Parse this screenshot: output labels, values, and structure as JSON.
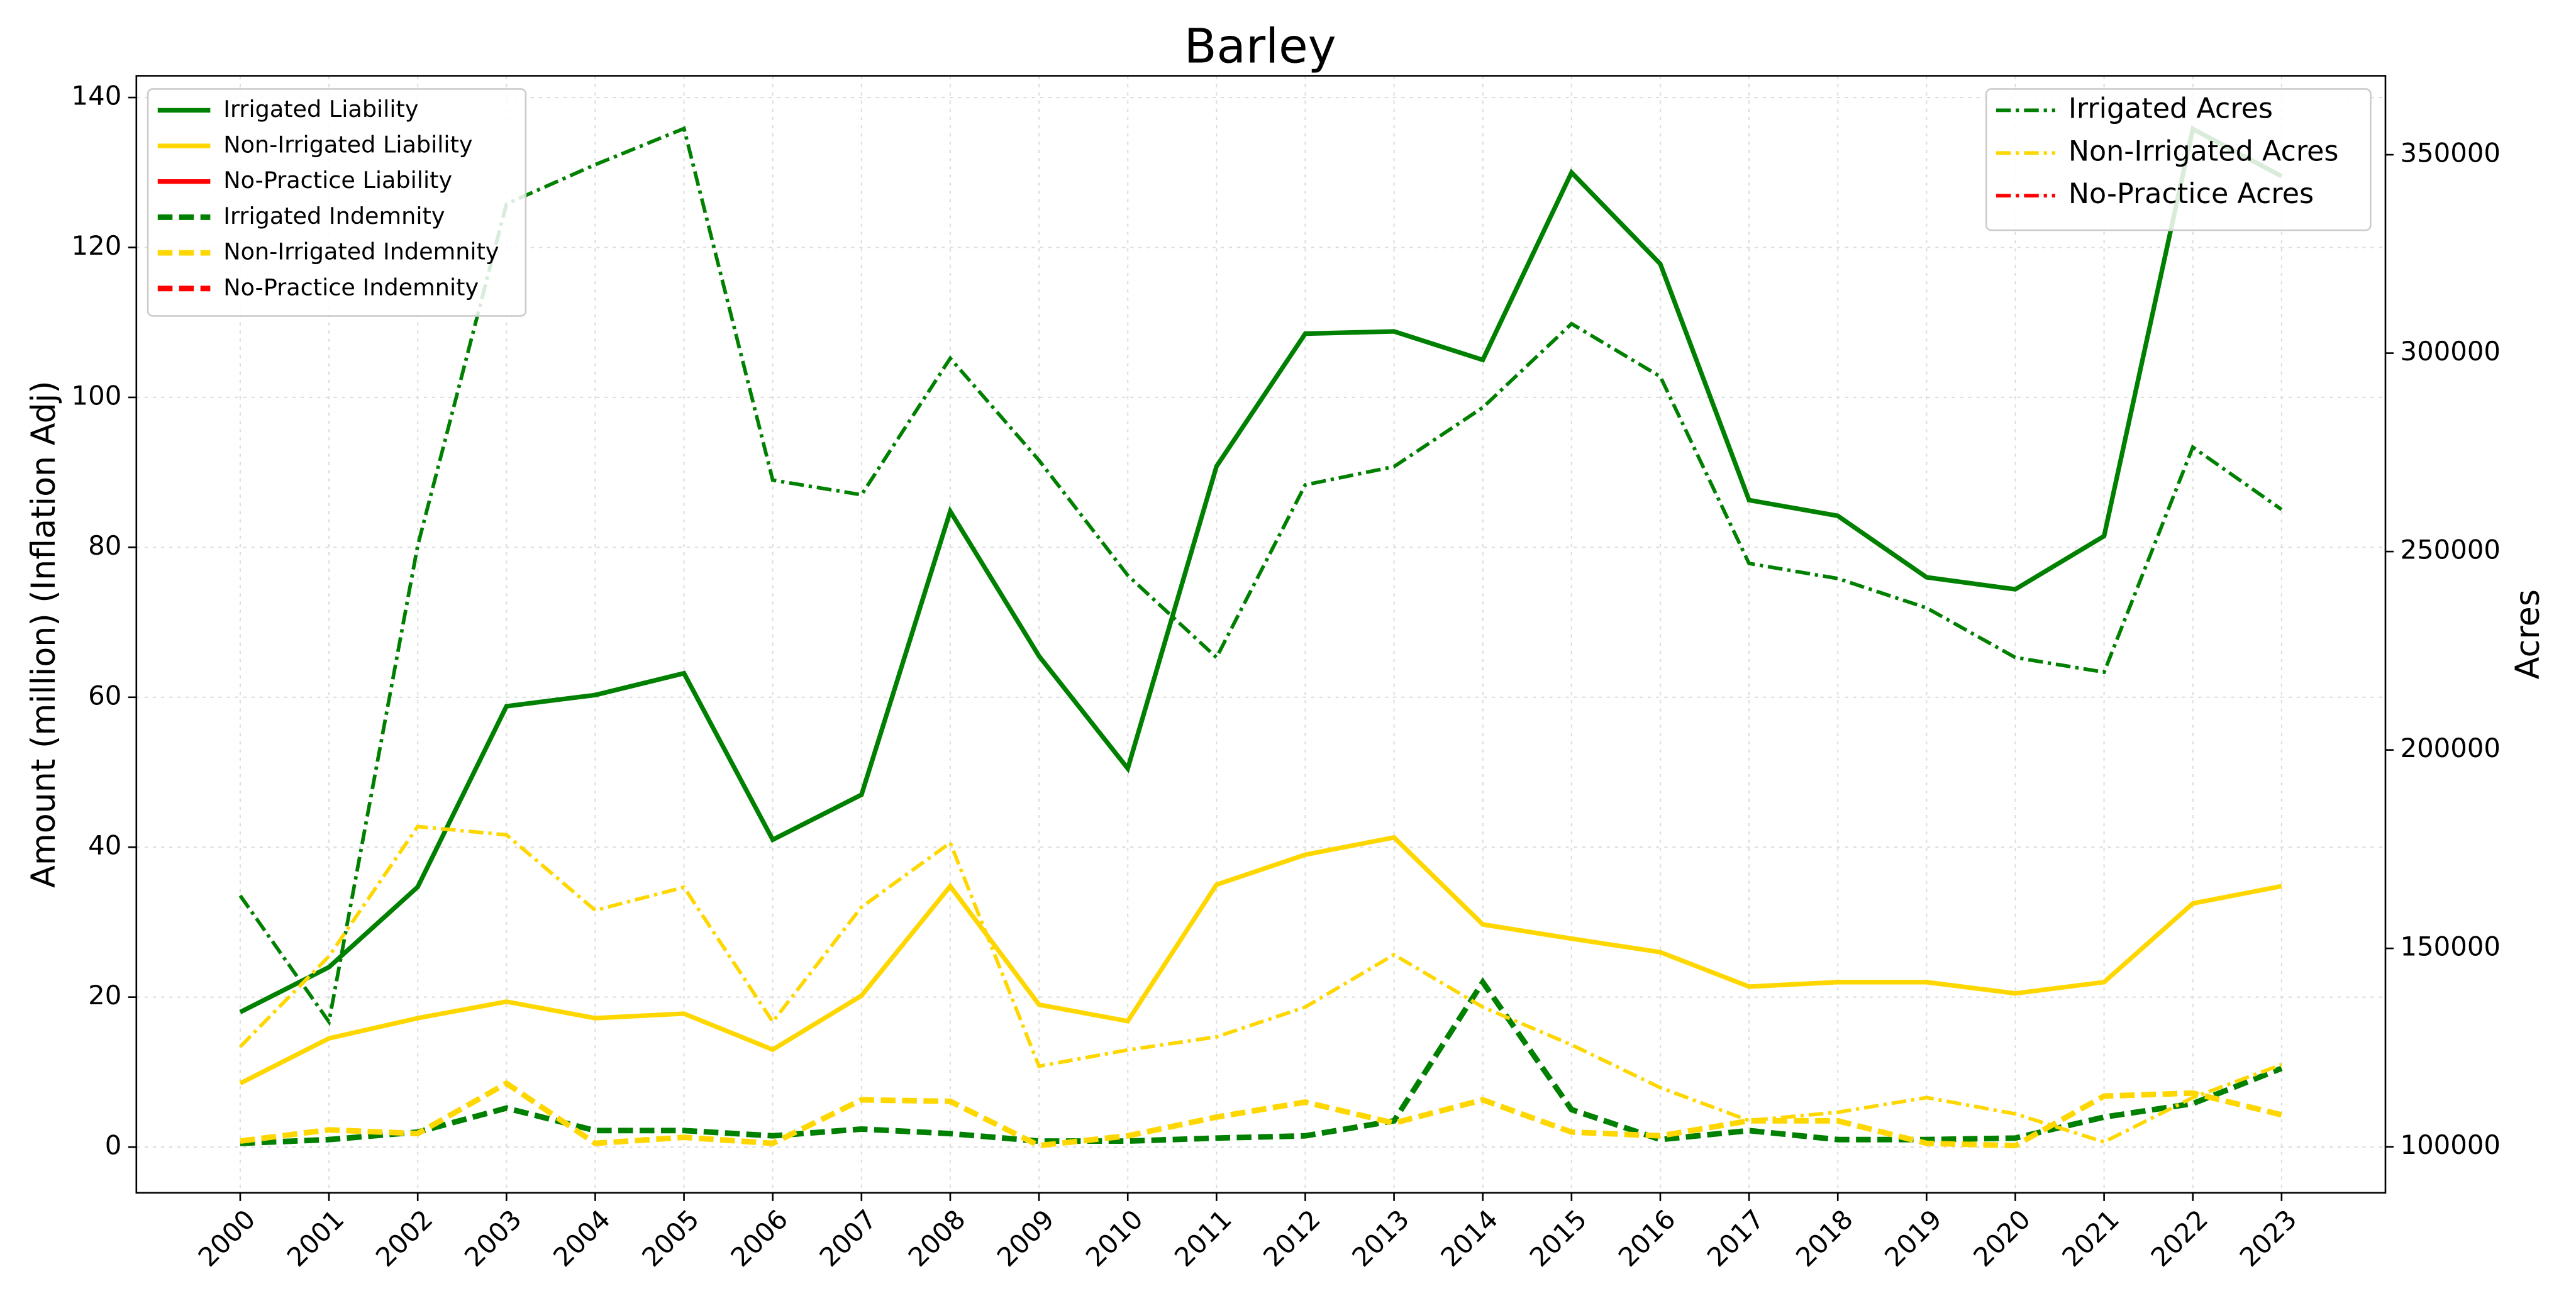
{
  "chart_data": {
    "type": "line",
    "title": "Barley",
    "ylabel": "Amount (million) (Inflation Adj)",
    "y2label": "Acres",
    "x": [
      2000,
      2001,
      2002,
      2003,
      2004,
      2005,
      2006,
      2007,
      2008,
      2009,
      2010,
      2011,
      2012,
      2013,
      2014,
      2015,
      2016,
      2017,
      2018,
      2019,
      2020,
      2021,
      2022,
      2023
    ],
    "xlim": [
      1998.83,
      2024.17
    ],
    "xticks": [
      2000,
      2001,
      2002,
      2003,
      2004,
      2005,
      2006,
      2007,
      2008,
      2009,
      2010,
      2011,
      2012,
      2013,
      2014,
      2015,
      2016,
      2017,
      2018,
      2019,
      2020,
      2021,
      2022,
      2023
    ],
    "ylim": [
      -6.1,
      142.9
    ],
    "yticks": [
      0,
      20,
      40,
      60,
      80,
      100,
      120,
      140
    ],
    "y2lim": [
      88400,
      369900
    ],
    "y2ticks": [
      100000,
      150000,
      200000,
      250000,
      300000,
      350000
    ],
    "grid": true,
    "legend": "upper left",
    "legend2": "upper right",
    "series": [
      {
        "name": "Irrigated Liability",
        "color": "#008000",
        "style": "solid",
        "axis": "y",
        "values": [
          18,
          24,
          34.7,
          58.8,
          60.3,
          63.2,
          41,
          47,
          84.8,
          65.5,
          50.5,
          90.8,
          108.5,
          108.8,
          105,
          130,
          117.8,
          86.3,
          84.2,
          76,
          74.4,
          81.5,
          135.8,
          129.5
        ]
      },
      {
        "name": "Non-Irrigated Liability",
        "color": "#ffd700",
        "style": "solid",
        "axis": "y",
        "values": [
          8.5,
          14.5,
          17.2,
          19.4,
          17.2,
          17.8,
          13,
          20.2,
          34.8,
          19,
          16.8,
          35,
          39,
          41.3,
          29.7,
          27.8,
          26,
          21.4,
          22,
          22,
          20.5,
          22,
          32.5,
          34.8
        ]
      },
      {
        "name": "No-Practice Liability",
        "color": "#ff0000",
        "style": "solid",
        "axis": "y",
        "values": [
          null,
          null,
          null,
          null,
          null,
          null,
          null,
          null,
          null,
          null,
          null,
          null,
          null,
          null,
          null,
          null,
          null,
          null,
          null,
          null,
          null,
          null,
          null,
          null
        ]
      },
      {
        "name": "Irrigated Indemnity",
        "color": "#008000",
        "style": "dashed",
        "axis": "y",
        "values": [
          0.5,
          1,
          2,
          5.2,
          2.2,
          2.2,
          1.5,
          2.4,
          1.8,
          0.8,
          0.8,
          1.2,
          1.5,
          3.5,
          22,
          5,
          1,
          2.2,
          1,
          1,
          1.2,
          4,
          5.8,
          10.5
        ]
      },
      {
        "name": "Non-Irrigated Indemnity",
        "color": "#ffd700",
        "style": "dashed",
        "axis": "y",
        "values": [
          0.8,
          2.3,
          1.8,
          8.5,
          0.5,
          1.3,
          0.5,
          6.3,
          6.1,
          0.2,
          1.5,
          4,
          6,
          3.2,
          6.3,
          2,
          1.5,
          3.5,
          3.5,
          0.5,
          0.2,
          6.8,
          7.2,
          4.3
        ]
      },
      {
        "name": "No-Practice Indemnity",
        "color": "#ff0000",
        "style": "dashed",
        "axis": "y",
        "values": [
          null,
          null,
          null,
          null,
          null,
          null,
          null,
          null,
          null,
          null,
          null,
          null,
          null,
          null,
          null,
          null,
          null,
          null,
          null,
          null,
          null,
          null,
          null,
          null
        ]
      },
      {
        "name": "Irrigated Acres",
        "color": "#008000",
        "style": "dashdot",
        "axis": "y2",
        "values": [
          163300,
          131500,
          251500,
          337600,
          347500,
          356600,
          268000,
          264300,
          298700,
          273000,
          244000,
          223300,
          266800,
          271400,
          286300,
          307400,
          294100,
          247000,
          243200,
          235800,
          223300,
          219600,
          276300,
          260600
        ]
      },
      {
        "name": "Non-Irrigated Acres",
        "color": "#ffd700",
        "style": "dashdot",
        "axis": "y2",
        "values": [
          125200,
          148000,
          180700,
          178600,
          159600,
          165400,
          131500,
          160400,
          176600,
          120300,
          124400,
          127700,
          135200,
          148400,
          135200,
          125700,
          114900,
          106600,
          108700,
          112400,
          108300,
          101200,
          112400,
          120700
        ]
      },
      {
        "name": "No-Practice Acres",
        "color": "#ff0000",
        "style": "dashdot",
        "axis": "y2",
        "values": [
          null,
          null,
          null,
          null,
          null,
          null,
          null,
          null,
          null,
          null,
          null,
          null,
          null,
          null,
          null,
          null,
          null,
          null,
          null,
          null,
          null,
          null,
          null,
          null
        ]
      }
    ]
  }
}
